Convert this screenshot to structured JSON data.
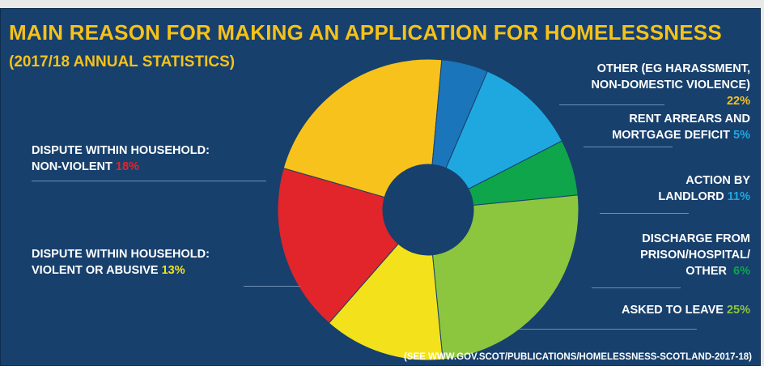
{
  "header": {
    "title": "MAIN REASON FOR MAKING AN APPLICATION FOR HOMELESSNESS",
    "subtitle": "(2017/18 ANNUAL STATISTICS)"
  },
  "source": "(SEE WWW.GOV.SCOT/PUBLICATIONS/HOMELESSNESS-SCOTLAND-2017-18)",
  "chart_data": {
    "type": "pie",
    "title": "MAIN REASON FOR MAKING AN APPLICATION FOR HOMELESSNESS",
    "subtitle": "(2017/18 ANNUAL STATISTICS)",
    "unit": "%",
    "donut": true,
    "slices": [
      {
        "label_lines": [
          "OTHER (EG HARASSMENT,",
          "NON-DOMESTIC VIOLENCE)"
        ],
        "pct_text": "22%",
        "value": 22,
        "color": "#f8c21c"
      },
      {
        "label_lines": [
          "RENT ARREARS AND",
          "MORTGAGE DEFICIT"
        ],
        "pct_text": "5%",
        "value": 5,
        "color": "#1b75bb"
      },
      {
        "label_lines": [
          "ACTION BY",
          "LANDLORD"
        ],
        "pct_text": "11%",
        "value": 11,
        "color": "#1fa8e0"
      },
      {
        "label_lines": [
          "DISCHARGE FROM",
          "PRISON/HOSPITAL/",
          "OTHER"
        ],
        "pct_text": "6%",
        "value": 6,
        "color": "#0ea54b"
      },
      {
        "label_lines": [
          "ASKED TO LEAVE"
        ],
        "pct_text": "25%",
        "value": 25,
        "color": "#8cc63f"
      },
      {
        "label_lines": [
          "DISPUTE WITHIN HOUSEHOLD:",
          "VIOLENT OR ABUSIVE"
        ],
        "pct_text": "13%",
        "value": 13,
        "color": "#f3e21b"
      },
      {
        "label_lines": [
          "DISPUTE WITHIN HOUSEHOLD:",
          "NON-VIOLENT"
        ],
        "pct_text": "18%",
        "value": 18,
        "color": "#e1252a"
      }
    ],
    "label_colors": {
      "text": "#ffffff",
      "pct": [
        "#f8c21c",
        "#1fa8e0",
        "#1fa8e0",
        "#0ea54b",
        "#8cc63f",
        "#f3e21b",
        "#e1252a"
      ]
    }
  }
}
